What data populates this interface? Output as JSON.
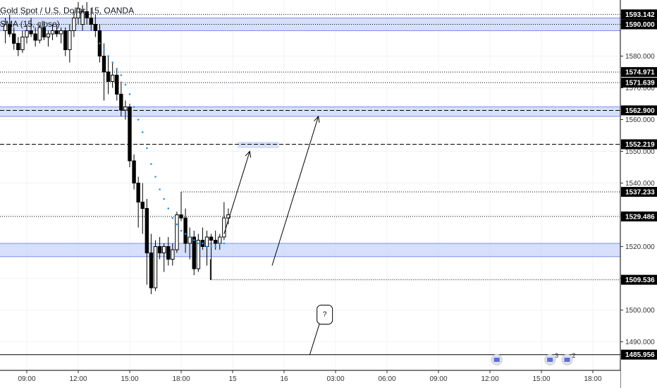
{
  "legend": {
    "symbol_title": "Gold Spot / U.S. Dollar, 15, OANDA",
    "indicator": "SMA (15, close)"
  },
  "colors": {
    "up_candle": "#ffffff",
    "down_candle": "#000000",
    "zone_fill": "#c8d6f8",
    "zone_border": "#5b6ee1",
    "price_tag_bg": "#000000",
    "sma_dots": "#2196f3",
    "grid": "#f0f3fa"
  },
  "chart_data": {
    "type": "candlestick",
    "title": "Gold Spot / U.S. Dollar, 15, OANDA",
    "indicator": "SMA (15, close)",
    "y_axis": {
      "range": [
        1481,
        1597
      ],
      "ticks": [
        1490.0,
        1500.0,
        1510.0,
        1520.0,
        1530.0,
        1540.0,
        1550.0,
        1560.0,
        1570.0,
        1580.0,
        1590.0
      ],
      "tick_labels": [
        "1490.000",
        "1500.000",
        "1510.000",
        "1520.000",
        "1530.000",
        "1540.000",
        "1550.000",
        "1560.000",
        "1570.000",
        "1580.000",
        "1590.000"
      ]
    },
    "x_axis": {
      "tick_labels": [
        "09:00",
        "12:00",
        "15:00",
        "18:00",
        "15",
        "16",
        "03:00",
        "06:00",
        "09:00",
        "12:00",
        "15:00",
        "18:00"
      ],
      "tick_hours": [
        9,
        12,
        15,
        18,
        21,
        24,
        27,
        30,
        33,
        36,
        39,
        42
      ]
    },
    "price_tags": [
      {
        "value": 1593.142,
        "label": "1593.142"
      },
      {
        "value": 1590.0,
        "label": "1590.000"
      },
      {
        "value": 1574.971,
        "label": "1574.971"
      },
      {
        "value": 1571.639,
        "label": "1571.639"
      },
      {
        "value": 1562.9,
        "label": "1562.900"
      },
      {
        "value": 1552.219,
        "label": "1552.219"
      },
      {
        "value": 1537.233,
        "label": "1537.233"
      },
      {
        "value": 1529.486,
        "label": "1529.486"
      },
      {
        "value": 1509.536,
        "label": "1509.536"
      },
      {
        "value": 1485.956,
        "label": "1485.956"
      }
    ],
    "zones": [
      {
        "top": 1592.0,
        "bottom": 1588.0
      },
      {
        "top": 1564.0,
        "bottom": 1561.0
      },
      {
        "top": 1521.0,
        "bottom": 1516.8
      },
      {
        "top": 1553.0,
        "bottom": 1551.0,
        "x_start": 21.3,
        "x_end": 23.7
      }
    ],
    "hlines": [
      {
        "value": 1593.142,
        "style": "dotted",
        "x_start": 7.6
      },
      {
        "value": 1590.0,
        "style": "dotted",
        "x_start": 7.6
      },
      {
        "value": 1574.971,
        "style": "dotted",
        "x_start": 7.6
      },
      {
        "value": 1571.639,
        "style": "dotted",
        "x_start": 7.6
      },
      {
        "value": 1562.9,
        "style": "dashed",
        "x_start": 7.6
      },
      {
        "value": 1552.219,
        "style": "dashed",
        "x_start": 7.6
      },
      {
        "value": 1537.233,
        "style": "dotted",
        "x_start": 18.0
      },
      {
        "value": 1529.486,
        "style": "dotted",
        "x_start": 7.6
      },
      {
        "value": 1509.536,
        "style": "dotted",
        "x_start": 19.7
      },
      {
        "value": 1485.956,
        "style": "solid",
        "x_start": 7.6
      }
    ],
    "arrows": [
      {
        "from": [
          20.5,
          1524.0
        ],
        "to": [
          22.0,
          1550.0
        ]
      },
      {
        "from": [
          23.3,
          1514.0
        ],
        "to": [
          26.0,
          1561.0
        ]
      }
    ],
    "callout": {
      "text": "?",
      "anchor": [
        25.5,
        1486.0
      ],
      "box": [
        26.0,
        1496.0
      ]
    },
    "event_markers": [
      {
        "x": 36.4,
        "count": ""
      },
      {
        "x": 39.5,
        "count": "3"
      },
      {
        "x": 40.5,
        "count": "2"
      }
    ],
    "candles": [
      {
        "t": 7.75,
        "o": 1588,
        "h": 1592,
        "l": 1584,
        "c": 1590
      },
      {
        "t": 8.0,
        "o": 1590,
        "h": 1593,
        "l": 1586,
        "c": 1587
      },
      {
        "t": 8.25,
        "o": 1587,
        "h": 1589,
        "l": 1582,
        "c": 1584
      },
      {
        "t": 8.5,
        "o": 1584,
        "h": 1586,
        "l": 1580,
        "c": 1582
      },
      {
        "t": 8.75,
        "o": 1582,
        "h": 1588,
        "l": 1581,
        "c": 1586
      },
      {
        "t": 9.0,
        "o": 1586,
        "h": 1590,
        "l": 1584,
        "c": 1588
      },
      {
        "t": 9.25,
        "o": 1588,
        "h": 1592,
        "l": 1586,
        "c": 1587
      },
      {
        "t": 9.5,
        "o": 1587,
        "h": 1589,
        "l": 1583,
        "c": 1585
      },
      {
        "t": 9.75,
        "o": 1585,
        "h": 1590,
        "l": 1584,
        "c": 1589
      },
      {
        "t": 10.0,
        "o": 1589,
        "h": 1591,
        "l": 1585,
        "c": 1586
      },
      {
        "t": 10.25,
        "o": 1586,
        "h": 1588,
        "l": 1583,
        "c": 1587
      },
      {
        "t": 10.5,
        "o": 1587,
        "h": 1590,
        "l": 1585,
        "c": 1588
      },
      {
        "t": 10.75,
        "o": 1588,
        "h": 1590,
        "l": 1586,
        "c": 1587
      },
      {
        "t": 11.0,
        "o": 1587,
        "h": 1589,
        "l": 1584,
        "c": 1588
      },
      {
        "t": 11.25,
        "o": 1588,
        "h": 1589,
        "l": 1580,
        "c": 1582
      },
      {
        "t": 11.5,
        "o": 1582,
        "h": 1590,
        "l": 1578,
        "c": 1588
      },
      {
        "t": 11.75,
        "o": 1588,
        "h": 1594,
        "l": 1586,
        "c": 1592
      },
      {
        "t": 12.0,
        "o": 1592,
        "h": 1597,
        "l": 1590,
        "c": 1595
      },
      {
        "t": 12.25,
        "o": 1590,
        "h": 1596,
        "l": 1588,
        "c": 1594
      },
      {
        "t": 12.5,
        "o": 1594,
        "h": 1597,
        "l": 1590,
        "c": 1592
      },
      {
        "t": 12.75,
        "o": 1592,
        "h": 1595,
        "l": 1588,
        "c": 1590
      },
      {
        "t": 13.0,
        "o": 1590,
        "h": 1593,
        "l": 1586,
        "c": 1588
      },
      {
        "t": 13.25,
        "o": 1588,
        "h": 1590,
        "l": 1578,
        "c": 1580
      },
      {
        "t": 13.5,
        "o": 1580,
        "h": 1584,
        "l": 1566,
        "c": 1575
      },
      {
        "t": 13.75,
        "o": 1575,
        "h": 1580,
        "l": 1568,
        "c": 1572
      },
      {
        "t": 14.0,
        "o": 1572,
        "h": 1578,
        "l": 1570,
        "c": 1574
      },
      {
        "t": 14.25,
        "o": 1574,
        "h": 1576,
        "l": 1566,
        "c": 1568
      },
      {
        "t": 14.5,
        "o": 1568,
        "h": 1572,
        "l": 1561,
        "c": 1563
      },
      {
        "t": 14.75,
        "o": 1563,
        "h": 1566,
        "l": 1560,
        "c": 1564
      },
      {
        "t": 15.0,
        "o": 1564,
        "h": 1565,
        "l": 1545,
        "c": 1547
      },
      {
        "t": 15.25,
        "o": 1547,
        "h": 1549,
        "l": 1538,
        "c": 1540
      },
      {
        "t": 15.5,
        "o": 1540,
        "h": 1542,
        "l": 1526,
        "c": 1534
      },
      {
        "t": 15.75,
        "o": 1534,
        "h": 1540,
        "l": 1524,
        "c": 1532
      },
      {
        "t": 16.0,
        "o": 1532,
        "h": 1535,
        "l": 1508,
        "c": 1518
      },
      {
        "t": 16.25,
        "o": 1518,
        "h": 1524,
        "l": 1505,
        "c": 1507
      },
      {
        "t": 16.5,
        "o": 1507,
        "h": 1522,
        "l": 1506,
        "c": 1520
      },
      {
        "t": 16.75,
        "o": 1520,
        "h": 1523,
        "l": 1516,
        "c": 1518
      },
      {
        "t": 17.0,
        "o": 1518,
        "h": 1521,
        "l": 1512,
        "c": 1520
      },
      {
        "t": 17.25,
        "o": 1520,
        "h": 1523,
        "l": 1514,
        "c": 1516
      },
      {
        "t": 17.5,
        "o": 1516,
        "h": 1521,
        "l": 1514,
        "c": 1519
      },
      {
        "t": 17.75,
        "o": 1519,
        "h": 1531,
        "l": 1518,
        "c": 1530
      },
      {
        "t": 18.0,
        "o": 1530,
        "h": 1537,
        "l": 1528,
        "c": 1529
      },
      {
        "t": 18.25,
        "o": 1529,
        "h": 1532,
        "l": 1518,
        "c": 1521
      },
      {
        "t": 18.5,
        "o": 1521,
        "h": 1526,
        "l": 1516,
        "c": 1523
      },
      {
        "t": 18.75,
        "o": 1523,
        "h": 1525,
        "l": 1511,
        "c": 1513
      },
      {
        "t": 19.0,
        "o": 1513,
        "h": 1524,
        "l": 1512,
        "c": 1522
      },
      {
        "t": 19.25,
        "o": 1522,
        "h": 1526,
        "l": 1519,
        "c": 1520
      },
      {
        "t": 19.5,
        "o": 1520,
        "h": 1525,
        "l": 1514,
        "c": 1523
      },
      {
        "t": 19.75,
        "o": 1523,
        "h": 1524,
        "l": 1509.5,
        "c": 1522
      },
      {
        "t": 20.0,
        "o": 1522,
        "h": 1525,
        "l": 1519,
        "c": 1521
      },
      {
        "t": 20.25,
        "o": 1521,
        "h": 1524,
        "l": 1519,
        "c": 1523
      },
      {
        "t": 20.5,
        "o": 1523,
        "h": 1534,
        "l": 1522,
        "c": 1529
      },
      {
        "t": 20.75,
        "o": 1529,
        "h": 1532,
        "l": 1527,
        "c": 1530
      }
    ],
    "sma": [
      {
        "t": 13.25,
        "v": 1584
      },
      {
        "t": 13.5,
        "v": 1582
      },
      {
        "t": 13.75,
        "v": 1580
      },
      {
        "t": 14.0,
        "v": 1578
      },
      {
        "t": 14.25,
        "v": 1576
      },
      {
        "t": 14.5,
        "v": 1574
      },
      {
        "t": 14.75,
        "v": 1571
      },
      {
        "t": 15.0,
        "v": 1568
      },
      {
        "t": 15.25,
        "v": 1564
      },
      {
        "t": 15.5,
        "v": 1560
      },
      {
        "t": 15.75,
        "v": 1556
      },
      {
        "t": 16.0,
        "v": 1551
      },
      {
        "t": 16.25,
        "v": 1546
      },
      {
        "t": 16.5,
        "v": 1542
      },
      {
        "t": 16.75,
        "v": 1538
      },
      {
        "t": 17.0,
        "v": 1535
      },
      {
        "t": 17.25,
        "v": 1532
      },
      {
        "t": 17.5,
        "v": 1529
      },
      {
        "t": 17.75,
        "v": 1527
      },
      {
        "t": 18.0,
        "v": 1525
      },
      {
        "t": 18.25,
        "v": 1524
      },
      {
        "t": 18.5,
        "v": 1523
      },
      {
        "t": 18.75,
        "v": 1522
      },
      {
        "t": 19.0,
        "v": 1521
      },
      {
        "t": 19.25,
        "v": 1521
      },
      {
        "t": 19.5,
        "v": 1520
      },
      {
        "t": 19.75,
        "v": 1520
      },
      {
        "t": 20.0,
        "v": 1520
      },
      {
        "t": 20.25,
        "v": 1521
      },
      {
        "t": 20.5,
        "v": 1521
      }
    ]
  }
}
